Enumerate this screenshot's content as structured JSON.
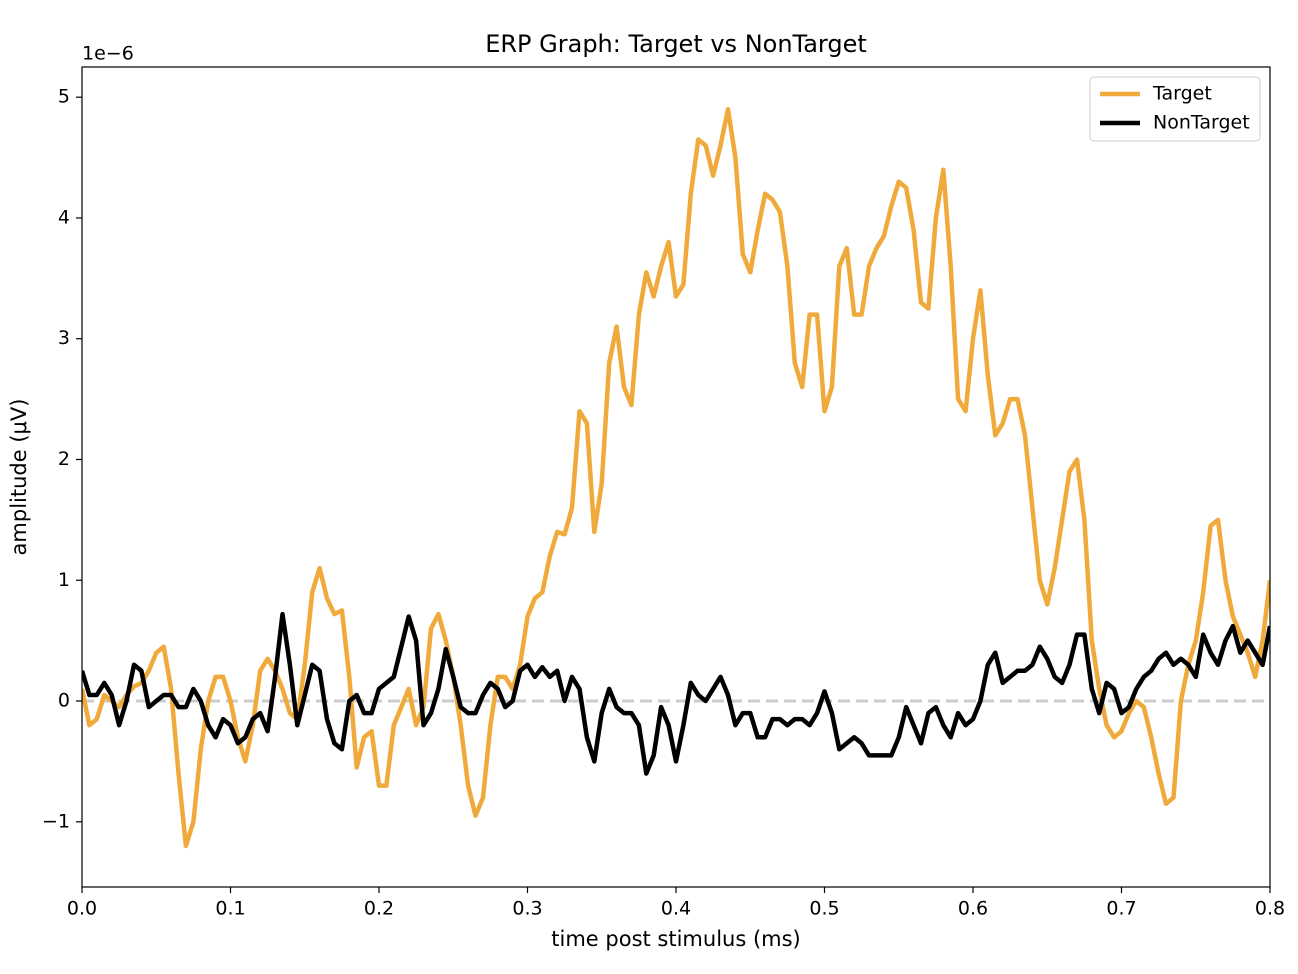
{
  "chart_data": {
    "type": "line",
    "title": "ERP Graph: Target vs NonTarget",
    "x_label": "time post stimulus (ms)",
    "y_label": "amplitude (μV)",
    "y_offset_label": "1e−6",
    "x": [
      0,
      0.005,
      0.01,
      0.015,
      0.02,
      0.025,
      0.03,
      0.035,
      0.04,
      0.045,
      0.05,
      0.055,
      0.06,
      0.065,
      0.07,
      0.075,
      0.08,
      0.085,
      0.09,
      0.095,
      0.1,
      0.105,
      0.11,
      0.115,
      0.12,
      0.125,
      0.13,
      0.135,
      0.14,
      0.145,
      0.15,
      0.155,
      0.16,
      0.165,
      0.17,
      0.175,
      0.18,
      0.185,
      0.19,
      0.195,
      0.2,
      0.205,
      0.21,
      0.215,
      0.22,
      0.225,
      0.23,
      0.235,
      0.24,
      0.245,
      0.25,
      0.255,
      0.26,
      0.265,
      0.27,
      0.275,
      0.28,
      0.285,
      0.29,
      0.295,
      0.3,
      0.305,
      0.31,
      0.315,
      0.32,
      0.325,
      0.33,
      0.335,
      0.34,
      0.345,
      0.35,
      0.355,
      0.36,
      0.365,
      0.37,
      0.375,
      0.38,
      0.385,
      0.39,
      0.395,
      0.4,
      0.405,
      0.41,
      0.415,
      0.42,
      0.425,
      0.43,
      0.435,
      0.44,
      0.445,
      0.45,
      0.455,
      0.46,
      0.465,
      0.47,
      0.475,
      0.48,
      0.485,
      0.49,
      0.495,
      0.5,
      0.505,
      0.51,
      0.515,
      0.52,
      0.525,
      0.53,
      0.535,
      0.54,
      0.545,
      0.55,
      0.555,
      0.56,
      0.565,
      0.57,
      0.575,
      0.58,
      0.585,
      0.59,
      0.595,
      0.6,
      0.605,
      0.61,
      0.615,
      0.62,
      0.625,
      0.63,
      0.635,
      0.64,
      0.645,
      0.65,
      0.655,
      0.66,
      0.665,
      0.67,
      0.675,
      0.68,
      0.685,
      0.69,
      0.695,
      0.7,
      0.705,
      0.71,
      0.715,
      0.72,
      0.725,
      0.73,
      0.735,
      0.74,
      0.745,
      0.75,
      0.755,
      0.76,
      0.765,
      0.77,
      0.775,
      0.78,
      0.785,
      0.79,
      0.795,
      0.8
    ],
    "series": [
      {
        "name": "Target",
        "color": "#f0a93b",
        "values": [
          0.1,
          -0.2,
          -0.15,
          0.05,
          0,
          -0.05,
          0.05,
          0.12,
          0.15,
          0.25,
          0.4,
          0.45,
          0.1,
          -0.6,
          -1.2,
          -1,
          -0.4,
          0,
          0.2,
          0.2,
          0,
          -0.3,
          -0.5,
          -0.2,
          0.25,
          0.35,
          0.25,
          0.1,
          -0.1,
          -0.15,
          0.3,
          0.9,
          1.1,
          0.85,
          0.72,
          0.75,
          0.2,
          -0.55,
          -0.3,
          -0.25,
          -0.7,
          -0.7,
          -0.2,
          -0.05,
          0.1,
          -0.2,
          -0.05,
          0.6,
          0.72,
          0.5,
          0.2,
          -0.2,
          -0.7,
          -0.95,
          -0.8,
          -0.2,
          0.2,
          0.2,
          0.1,
          0.3,
          0.7,
          0.85,
          0.9,
          1.2,
          1.4,
          1.38,
          1.6,
          2.4,
          2.3,
          1.4,
          1.8,
          2.8,
          3.1,
          2.6,
          2.45,
          3.2,
          3.55,
          3.35,
          3.6,
          3.8,
          3.35,
          3.45,
          4.2,
          4.65,
          4.6,
          4.35,
          4.6,
          4.9,
          4.5,
          3.7,
          3.55,
          3.9,
          4.2,
          4.15,
          4.05,
          3.6,
          2.8,
          2.6,
          3.2,
          3.2,
          2.4,
          2.6,
          3.6,
          3.75,
          3.2,
          3.2,
          3.6,
          3.75,
          3.85,
          4.1,
          4.3,
          4.25,
          3.9,
          3.3,
          3.25,
          4,
          4.4,
          3.6,
          2.5,
          2.4,
          3,
          3.4,
          2.7,
          2.2,
          2.3,
          2.5,
          2.5,
          2.2,
          1.6,
          1,
          0.8,
          1.1,
          1.5,
          1.9,
          2,
          1.5,
          0.5,
          0.1,
          -0.2,
          -0.3,
          -0.25,
          -0.1,
          0,
          -0.05,
          -0.3,
          -0.6,
          -0.85,
          -0.8,
          0,
          0.3,
          0.5,
          0.9,
          1.45,
          1.5,
          1,
          0.7,
          0.55,
          0.4,
          0.2,
          0.5,
          1
        ]
      },
      {
        "name": "NonTarget",
        "color": "#000000",
        "values": [
          0.25,
          0.05,
          0.05,
          0.15,
          0.05,
          -0.2,
          0,
          0.3,
          0.25,
          -0.05,
          0,
          0.05,
          0.05,
          -0.05,
          -0.05,
          0.1,
          0,
          -0.2,
          -0.3,
          -0.15,
          -0.2,
          -0.35,
          -0.3,
          -0.15,
          -0.1,
          -0.25,
          0.2,
          0.72,
          0.3,
          -0.2,
          0.05,
          0.3,
          0.25,
          -0.15,
          -0.35,
          -0.4,
          0,
          0.05,
          -0.1,
          -0.1,
          0.1,
          0.15,
          0.2,
          0.45,
          0.7,
          0.5,
          -0.2,
          -0.1,
          0.1,
          0.43,
          0.2,
          -0.05,
          -0.1,
          -0.1,
          0.05,
          0.15,
          0.1,
          -0.05,
          0,
          0.25,
          0.3,
          0.2,
          0.28,
          0.2,
          0.25,
          0,
          0.2,
          0.1,
          -0.3,
          -0.5,
          -0.1,
          0.1,
          -0.05,
          -0.1,
          -0.1,
          -0.2,
          -0.6,
          -0.45,
          -0.05,
          -0.2,
          -0.5,
          -0.2,
          0.15,
          0.05,
          0,
          0.1,
          0.2,
          0.05,
          -0.2,
          -0.1,
          -0.1,
          -0.3,
          -0.3,
          -0.15,
          -0.15,
          -0.2,
          -0.15,
          -0.15,
          -0.2,
          -0.1,
          0.08,
          -0.1,
          -0.4,
          -0.35,
          -0.3,
          -0.35,
          -0.45,
          -0.45,
          -0.45,
          -0.45,
          -0.3,
          -0.05,
          -0.2,
          -0.35,
          -0.1,
          -0.05,
          -0.2,
          -0.3,
          -0.1,
          -0.2,
          -0.15,
          0,
          0.3,
          0.4,
          0.15,
          0.2,
          0.25,
          0.25,
          0.3,
          0.45,
          0.35,
          0.2,
          0.15,
          0.3,
          0.55,
          0.55,
          0.1,
          -0.1,
          0.15,
          0.1,
          -0.1,
          -0.05,
          0.1,
          0.2,
          0.25,
          0.35,
          0.4,
          0.3,
          0.35,
          0.3,
          0.2,
          0.55,
          0.4,
          0.3,
          0.5,
          0.62,
          0.4,
          0.5,
          0.4,
          0.3,
          0.62
        ]
      }
    ],
    "reference_line": {
      "value": 0,
      "color": "#cccccc"
    },
    "xlim": [
      0,
      0.8
    ],
    "ylim": [
      -1.54,
      5.25
    ],
    "xticks": [
      {
        "value": 0,
        "label": "0.0"
      },
      0.1,
      0.2,
      0.3,
      0.4,
      0.5,
      0.6,
      0.7,
      0.8
    ],
    "yticks": [
      {
        "value": -1,
        "label": "−1"
      },
      0,
      1,
      2,
      3,
      4,
      5
    ],
    "grid": false,
    "legend": "upper right"
  }
}
